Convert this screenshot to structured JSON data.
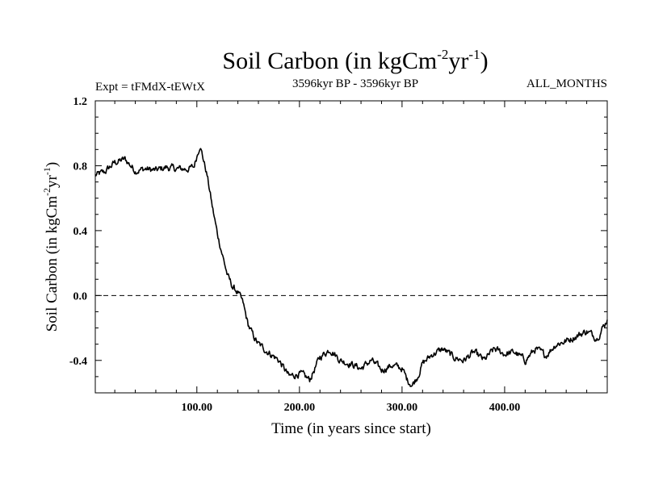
{
  "chart_data": {
    "type": "line",
    "title": {
      "main": "Soil Carbon (in kgCm",
      "sup1": "-2",
      "mid": "yr",
      "sup2": "-1",
      "end": ")"
    },
    "subtitle_left": "Expt = tFMdX-tEWtX",
    "subtitle_center": "3596kyr BP - 3596kyr BP",
    "subtitle_right": "ALL_MONTHS",
    "xlabel": "Time (in years since start)",
    "ylabel": {
      "main": "Soil Carbon (in kgCm",
      "sup1": "-2",
      "mid": "yr",
      "sup2": "-1",
      "end": ")"
    },
    "xlim": [
      1,
      500
    ],
    "ylim": [
      -0.6,
      1.2
    ],
    "xticks": [
      100,
      200,
      300,
      400
    ],
    "xtick_labels": [
      "100.00",
      "200.00",
      "300.00",
      "400.00"
    ],
    "yticks": [
      1.2,
      0.8,
      0.4,
      0.0,
      -0.4
    ],
    "ytick_labels": [
      "1.2",
      "0.8",
      "0.4",
      "0.0",
      "-0.4"
    ],
    "zero_line": true,
    "series": [
      {
        "name": "Soil Carbon",
        "color": "#000000",
        "x": [
          1,
          10,
          20,
          30,
          40,
          50,
          60,
          70,
          80,
          90,
          97,
          100,
          103,
          106,
          110,
          115,
          120,
          125,
          130,
          135,
          140,
          145,
          150,
          155,
          160,
          170,
          180,
          190,
          200,
          210,
          220,
          230,
          240,
          250,
          260,
          270,
          280,
          290,
          300,
          305,
          310,
          315,
          320,
          330,
          340,
          350,
          360,
          370,
          380,
          390,
          400,
          410,
          420,
          430,
          440,
          450,
          460,
          470,
          480,
          490,
          500
        ],
        "values": [
          0.74,
          0.76,
          0.82,
          0.84,
          0.77,
          0.78,
          0.77,
          0.79,
          0.78,
          0.78,
          0.79,
          0.86,
          0.93,
          0.85,
          0.74,
          0.55,
          0.38,
          0.25,
          0.12,
          0.05,
          0.02,
          -0.05,
          -0.18,
          -0.25,
          -0.3,
          -0.35,
          -0.4,
          -0.5,
          -0.48,
          -0.52,
          -0.38,
          -0.33,
          -0.4,
          -0.42,
          -0.45,
          -0.4,
          -0.46,
          -0.43,
          -0.45,
          -0.52,
          -0.55,
          -0.5,
          -0.42,
          -0.36,
          -0.33,
          -0.38,
          -0.4,
          -0.35,
          -0.4,
          -0.33,
          -0.36,
          -0.35,
          -0.4,
          -0.33,
          -0.37,
          -0.3,
          -0.28,
          -0.25,
          -0.22,
          -0.26,
          -0.15
        ]
      }
    ]
  }
}
